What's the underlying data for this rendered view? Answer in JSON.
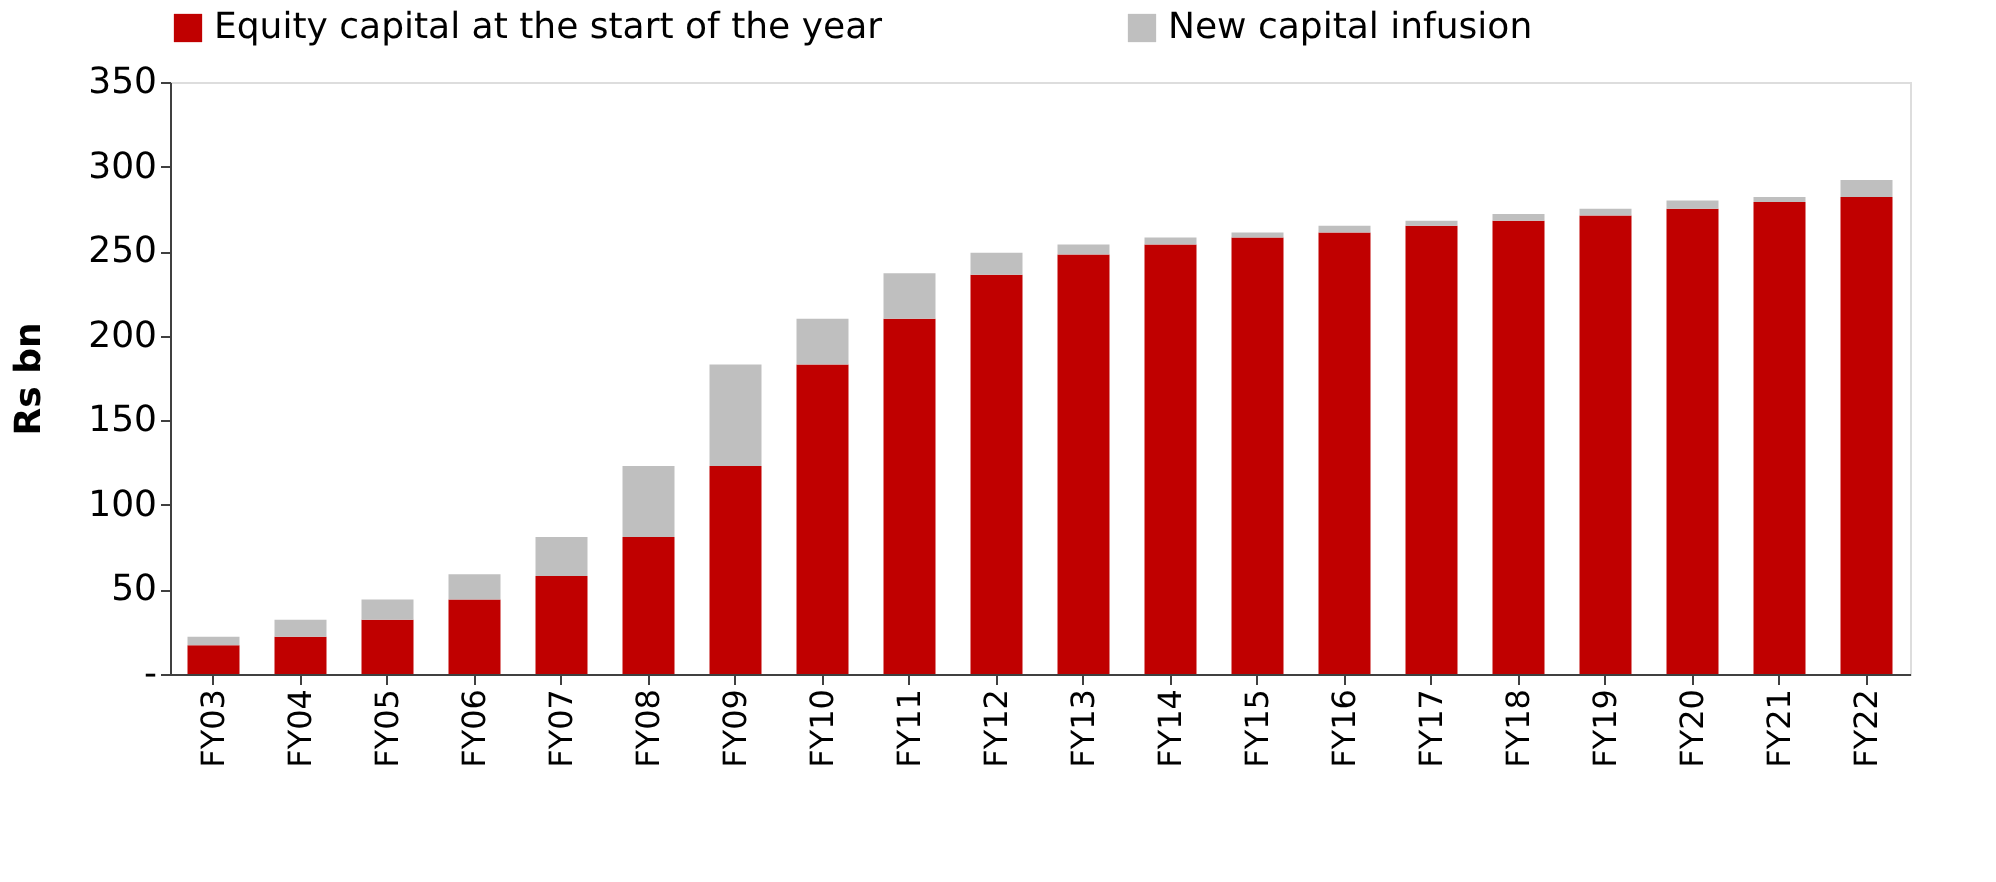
{
  "chart_data": {
    "type": "bar",
    "stacked": true,
    "ylabel": "Rs bn",
    "categories": [
      "FY03",
      "FY04",
      "FY05",
      "FY06",
      "FY07",
      "FY08",
      "FY09",
      "FY10",
      "FY11",
      "FY12",
      "FY13",
      "FY14",
      "FY15",
      "FY16",
      "FY17",
      "FY18",
      "FY19",
      "FY20",
      "FY21",
      "FY22"
    ],
    "series": [
      {
        "name": "Equity capital at the start of the year",
        "color": "#c00000",
        "values": [
          17,
          22,
          32,
          44,
          58,
          81,
          123,
          183,
          210,
          236,
          248,
          254,
          258,
          261,
          265,
          268,
          271,
          275,
          279,
          282
        ]
      },
      {
        "name": "New capital infusion",
        "color": "#bfbfbf",
        "values": [
          5,
          10,
          12,
          15,
          23,
          42,
          60,
          27,
          27,
          13,
          6,
          4,
          3,
          4,
          3,
          4,
          4,
          5,
          3,
          10
        ]
      }
    ],
    "ylim": [
      0,
      350
    ],
    "yticks": [
      {
        "value": 0,
        "label": "-"
      },
      50,
      100,
      150,
      200,
      250,
      300,
      350
    ],
    "grid": false,
    "legend": "top"
  }
}
